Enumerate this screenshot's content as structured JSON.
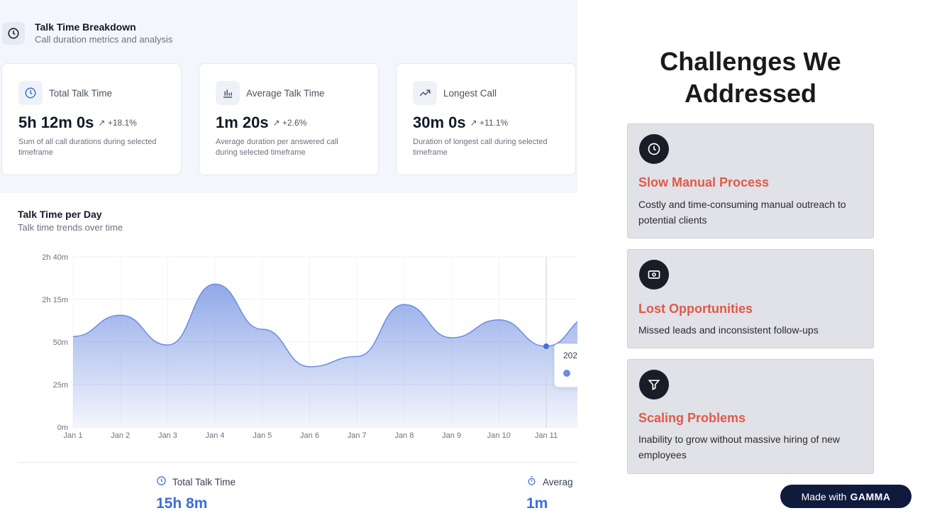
{
  "dashboard": {
    "header": {
      "title": "Talk Time Breakdown",
      "subtitle": "Call duration metrics and analysis",
      "icon": "clock-icon"
    },
    "metrics": [
      {
        "label": "Total Talk Time",
        "value": "5h 12m 0s",
        "delta": "+18.1%",
        "description": "Sum of all call durations during selected timeframe",
        "icon": "clock-icon"
      },
      {
        "label": "Average Talk Time",
        "value": "1m 20s",
        "delta": "+2.6%",
        "description": "Average duration per answered call during selected timeframe",
        "icon": "bar-chart-icon"
      },
      {
        "label": "Longest Call",
        "value": "30m 0s",
        "delta": "+11.1%",
        "description": "Duration of longest call during selected timeframe",
        "icon": "trending-up-icon"
      }
    ],
    "chart_title": "Talk Time per Day",
    "chart_subtitle": "Talk time trends over time",
    "tooltip_text": "202",
    "summary": [
      {
        "label": "Total Talk Time",
        "value": "15h 8m",
        "icon": "clock-icon"
      },
      {
        "label": "Averag",
        "value": "1m",
        "icon": "stopwatch-icon"
      }
    ]
  },
  "chart_data": {
    "type": "area",
    "title": "Talk Time per Day",
    "subtitle": "Talk time trends over time",
    "x": [
      "Jan 1",
      "Jan 2",
      "Jan 3",
      "Jan 4",
      "Jan 5",
      "Jan 6",
      "Jan 7",
      "Jan 8",
      "Jan 9",
      "Jan 10",
      "Jan 11"
    ],
    "y_ticks": [
      "0m",
      "25m",
      "50m",
      "2h 15m",
      "2h 40m"
    ],
    "series": [
      {
        "values": [
          2.13,
          2.63,
          1.93,
          3.36,
          2.3,
          1.42,
          1.66,
          2.88,
          2.1,
          2.52,
          1.9
        ]
      }
    ],
    "y_scale_note": "axis ticks are unevenly labeled; values expressed in tick-index units (0 = 0m, 4 = 2h 40m)",
    "ylim": [
      0,
      4
    ],
    "color": "#6b8ce0",
    "grid": true,
    "highlighted_point": "Jan 11"
  },
  "slide": {
    "title": "Challenges We Addressed",
    "challenges": [
      {
        "title": "Slow Manual Process",
        "description": "Costly and time-consuming manual outreach to potential clients",
        "icon": "clock-icon"
      },
      {
        "title": "Lost Opportunities",
        "description": "Missed leads and inconsistent follow-ups",
        "icon": "money-icon"
      },
      {
        "title": "Scaling Problems",
        "description": "Inability to grow without massive hiring of new employees",
        "icon": "filter-icon"
      }
    ],
    "badge": {
      "prefix": "Made with",
      "brand": "GAMMA"
    }
  },
  "colors": {
    "accent": "#3b6fd8",
    "challenge_heading": "#e05a47",
    "icon_circle": "#1c1c28",
    "badge_bg": "#0f1a3d"
  }
}
